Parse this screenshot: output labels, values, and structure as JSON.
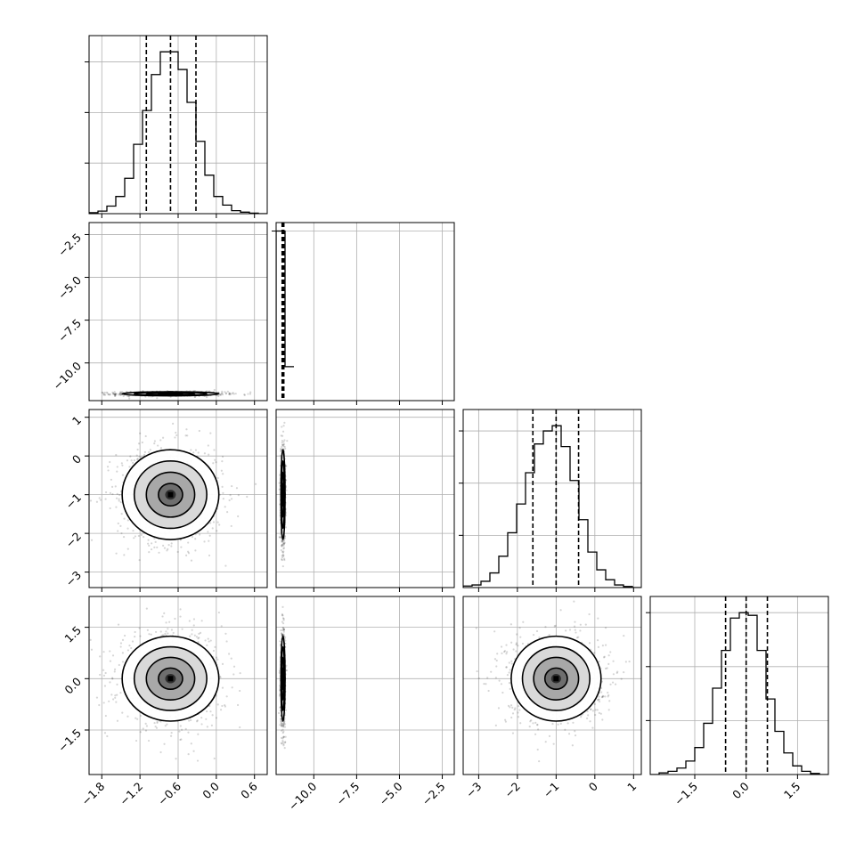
{
  "chart_data": {
    "type": "corner",
    "grid": true,
    "dimensions": [
      {
        "range": [
          -2.0,
          0.8
        ],
        "ticks": [
          -1.8,
          -1.2,
          -0.6,
          0.0,
          0.6
        ],
        "tick_labels": [
          "−1.8",
          "−1.2",
          "−0.6",
          "0.0",
          "0.6"
        ],
        "quantiles": [
          -1.1,
          -0.72,
          -0.32
        ],
        "hist_edges": [
          -2.0,
          -1.86,
          -1.72,
          -1.58,
          -1.44,
          -1.3,
          -1.16,
          -1.02,
          -0.88,
          -0.74,
          -0.6,
          -0.46,
          -0.32,
          -0.18,
          -0.04,
          0.1,
          0.24,
          0.38,
          0.52,
          0.66,
          0.8
        ],
        "hist_counts": [
          2,
          5,
          15,
          34,
          70,
          137,
          204,
          275,
          320,
          320,
          285,
          220,
          143,
          76,
          34,
          17,
          6,
          3,
          1,
          0
        ]
      },
      {
        "range": [
          -12.2,
          -1.8
        ],
        "ticks": [
          -10.0,
          -7.5,
          -5.0,
          -2.5
        ],
        "tick_labels": [
          "−10.0",
          "−7.5",
          "−5.0",
          "−2.5"
        ],
        "y_ticks": [
          -2.5,
          -5.0,
          -7.5,
          -10.0
        ],
        "y_tick_labels": [
          "−2.5",
          "−5.0",
          "−7.5",
          "−10.0"
        ],
        "quantiles": [
          -11.85,
          -11.8,
          -11.75
        ],
        "hist_edges": [
          -12.2,
          -11.68,
          -11.16
        ],
        "hist_counts": [
          4000,
          800
        ]
      },
      {
        "range": [
          -3.4,
          1.2
        ],
        "ticks": [
          -3,
          -2,
          -1,
          0,
          1
        ],
        "tick_labels": [
          "−3",
          "−2",
          "−1",
          "0",
          "1"
        ],
        "y_ticks": [
          1,
          0,
          -1,
          -2,
          -3
        ],
        "y_tick_labels": [
          "1",
          "0",
          "−1",
          "−2",
          "−3"
        ],
        "quantiles": [
          -1.6,
          -1.0,
          -0.42
        ],
        "hist_edges": [
          -3.4,
          -3.17,
          -2.94,
          -2.71,
          -2.48,
          -2.25,
          -2.02,
          -1.79,
          -1.56,
          -1.33,
          -1.1,
          -0.87,
          -0.64,
          -0.41,
          -0.18,
          0.05,
          0.28,
          0.51,
          0.74,
          0.97,
          1.2
        ],
        "hist_counts": [
          3,
          5,
          12,
          28,
          60,
          105,
          160,
          220,
          275,
          300,
          310,
          270,
          205,
          130,
          68,
          34,
          15,
          5,
          2,
          0
        ]
      },
      {
        "range": [
          -2.8,
          2.4
        ],
        "ticks": [
          -1.5,
          0.0,
          1.5
        ],
        "tick_labels": [
          "−1.5",
          "0.0",
          "1.5"
        ],
        "y_ticks": [
          1.5,
          0.0,
          -1.5
        ],
        "y_tick_labels": [
          "1.5",
          "0.0",
          "−1.5"
        ],
        "quantiles": [
          -0.6,
          0.0,
          0.62
        ],
        "hist_edges": [
          -2.8,
          -2.54,
          -2.28,
          -2.02,
          -1.76,
          -1.5,
          -1.24,
          -0.98,
          -0.72,
          -0.46,
          -0.2,
          0.06,
          0.32,
          0.58,
          0.84,
          1.1,
          1.36,
          1.62,
          1.88,
          2.14,
          2.4
        ],
        "hist_counts": [
          0,
          3,
          6,
          12,
          25,
          50,
          95,
          160,
          230,
          290,
          300,
          295,
          230,
          140,
          80,
          40,
          16,
          6,
          2,
          0
        ]
      }
    ],
    "histogram_y_ticks": [
      [
        100,
        200,
        300
      ],
      [
        4000
      ],
      [
        100,
        200,
        300
      ],
      [
        100,
        200,
        300
      ]
    ],
    "sample_stats": {
      "mean": [
        -0.72,
        -11.8,
        -1.0,
        0.0
      ],
      "std": [
        0.38,
        0.06,
        0.58,
        0.62
      ]
    }
  }
}
